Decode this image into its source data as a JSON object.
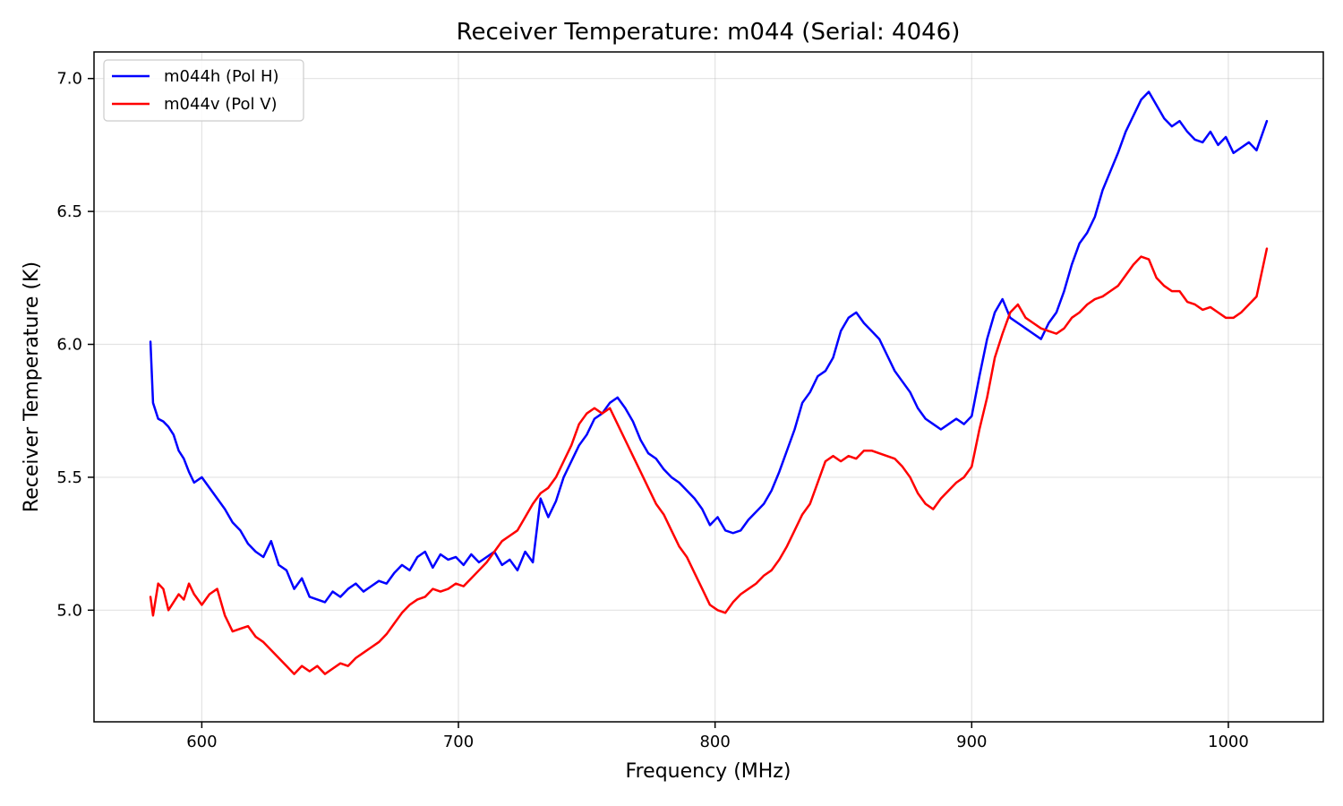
{
  "chart_data": {
    "type": "line",
    "title": "Receiver Temperature: m044 (Serial: 4046)",
    "xlabel": "Frequency (MHz)",
    "ylabel": "Receiver Temperature (K)",
    "xlim": [
      558,
      1037
    ],
    "ylim": [
      4.58,
      7.1
    ],
    "xticks": [
      600,
      700,
      800,
      900,
      1000
    ],
    "xtick_labels": [
      "600",
      "700",
      "800",
      "900",
      "1000"
    ],
    "yticks": [
      5.0,
      5.5,
      6.0,
      6.5,
      7.0
    ],
    "ytick_labels": [
      "5.0",
      "5.5",
      "6.0",
      "6.5",
      "7.0"
    ],
    "grid": true,
    "legend_position": "top-left",
    "series": [
      {
        "name": "m044h (Pol H)",
        "color": "#0000ff",
        "x": [
          580,
          581,
          583,
          585,
          587,
          589,
          591,
          593,
          595,
          597,
          600,
          603,
          606,
          609,
          612,
          615,
          618,
          621,
          624,
          627,
          630,
          633,
          636,
          639,
          642,
          645,
          648,
          651,
          654,
          657,
          660,
          663,
          666,
          669,
          672,
          675,
          678,
          681,
          684,
          687,
          690,
          693,
          696,
          699,
          702,
          705,
          708,
          711,
          714,
          717,
          720,
          723,
          726,
          729,
          732,
          735,
          738,
          741,
          744,
          747,
          750,
          753,
          756,
          759,
          762,
          765,
          768,
          771,
          774,
          777,
          780,
          783,
          786,
          789,
          792,
          795,
          798,
          801,
          804,
          807,
          810,
          813,
          816,
          819,
          822,
          825,
          828,
          831,
          834,
          837,
          840,
          843,
          846,
          849,
          852,
          855,
          858,
          861,
          864,
          867,
          870,
          873,
          876,
          879,
          882,
          885,
          888,
          891,
          894,
          897,
          900,
          903,
          906,
          909,
          912,
          915,
          918,
          921,
          924,
          927,
          930,
          933,
          936,
          939,
          942,
          945,
          948,
          951,
          954,
          957,
          960,
          963,
          966,
          969,
          972,
          975,
          978,
          981,
          984,
          987,
          990,
          993,
          996,
          999,
          1002,
          1005,
          1008,
          1011,
          1015
        ],
        "values": [
          6.01,
          5.78,
          5.72,
          5.71,
          5.69,
          5.66,
          5.6,
          5.57,
          5.52,
          5.48,
          5.5,
          5.46,
          5.42,
          5.38,
          5.33,
          5.3,
          5.25,
          5.22,
          5.2,
          5.26,
          5.17,
          5.15,
          5.08,
          5.12,
          5.05,
          5.04,
          5.03,
          5.07,
          5.05,
          5.08,
          5.1,
          5.07,
          5.09,
          5.11,
          5.1,
          5.14,
          5.17,
          5.15,
          5.2,
          5.22,
          5.16,
          5.21,
          5.19,
          5.2,
          5.17,
          5.21,
          5.18,
          5.2,
          5.22,
          5.17,
          5.19,
          5.15,
          5.22,
          5.18,
          5.42,
          5.35,
          5.41,
          5.5,
          5.56,
          5.62,
          5.66,
          5.72,
          5.74,
          5.78,
          5.8,
          5.76,
          5.71,
          5.64,
          5.59,
          5.57,
          5.53,
          5.5,
          5.48,
          5.45,
          5.42,
          5.38,
          5.32,
          5.35,
          5.3,
          5.29,
          5.3,
          5.34,
          5.37,
          5.4,
          5.45,
          5.52,
          5.6,
          5.68,
          5.78,
          5.82,
          5.88,
          5.9,
          5.95,
          6.05,
          6.1,
          6.12,
          6.08,
          6.05,
          6.02,
          5.96,
          5.9,
          5.86,
          5.82,
          5.76,
          5.72,
          5.7,
          5.68,
          5.7,
          5.72,
          5.7,
          5.73,
          5.88,
          6.02,
          6.12,
          6.17,
          6.1,
          6.08,
          6.06,
          6.04,
          6.02,
          6.08,
          6.12,
          6.2,
          6.3,
          6.38,
          6.42,
          6.48,
          6.58,
          6.65,
          6.72,
          6.8,
          6.86,
          6.92,
          6.95,
          6.9,
          6.85,
          6.82,
          6.84,
          6.8,
          6.77,
          6.76,
          6.8,
          6.75,
          6.78,
          6.72,
          6.74,
          6.76,
          6.73,
          6.84
        ]
      },
      {
        "name": "m044v (Pol V)",
        "color": "#ff0000",
        "x": [
          580,
          581,
          583,
          585,
          587,
          589,
          591,
          593,
          595,
          597,
          600,
          603,
          606,
          609,
          612,
          615,
          618,
          621,
          624,
          627,
          630,
          633,
          636,
          639,
          642,
          645,
          648,
          651,
          654,
          657,
          660,
          663,
          666,
          669,
          672,
          675,
          678,
          681,
          684,
          687,
          690,
          693,
          696,
          699,
          702,
          705,
          708,
          711,
          714,
          717,
          720,
          723,
          726,
          729,
          732,
          735,
          738,
          741,
          744,
          747,
          750,
          753,
          756,
          759,
          762,
          765,
          768,
          771,
          774,
          777,
          780,
          783,
          786,
          789,
          792,
          795,
          798,
          801,
          804,
          807,
          810,
          813,
          816,
          819,
          822,
          825,
          828,
          831,
          834,
          837,
          840,
          843,
          846,
          849,
          852,
          855,
          858,
          861,
          864,
          867,
          870,
          873,
          876,
          879,
          882,
          885,
          888,
          891,
          894,
          897,
          900,
          903,
          906,
          909,
          912,
          915,
          918,
          921,
          924,
          927,
          930,
          933,
          936,
          939,
          942,
          945,
          948,
          951,
          954,
          957,
          960,
          963,
          966,
          969,
          972,
          975,
          978,
          981,
          984,
          987,
          990,
          993,
          996,
          999,
          1002,
          1005,
          1008,
          1011,
          1015
        ],
        "values": [
          5.05,
          4.98,
          5.1,
          5.08,
          5.0,
          5.03,
          5.06,
          5.04,
          5.1,
          5.06,
          5.02,
          5.06,
          5.08,
          4.98,
          4.92,
          4.93,
          4.94,
          4.9,
          4.88,
          4.85,
          4.82,
          4.79,
          4.76,
          4.79,
          4.77,
          4.79,
          4.76,
          4.78,
          4.8,
          4.79,
          4.82,
          4.84,
          4.86,
          4.88,
          4.91,
          4.95,
          4.99,
          5.02,
          5.04,
          5.05,
          5.08,
          5.07,
          5.08,
          5.1,
          5.09,
          5.12,
          5.15,
          5.18,
          5.22,
          5.26,
          5.28,
          5.3,
          5.35,
          5.4,
          5.44,
          5.46,
          5.5,
          5.56,
          5.62,
          5.7,
          5.74,
          5.76,
          5.74,
          5.76,
          5.7,
          5.64,
          5.58,
          5.52,
          5.46,
          5.4,
          5.36,
          5.3,
          5.24,
          5.2,
          5.14,
          5.08,
          5.02,
          5.0,
          4.99,
          5.03,
          5.06,
          5.08,
          5.1,
          5.13,
          5.15,
          5.19,
          5.24,
          5.3,
          5.36,
          5.4,
          5.48,
          5.56,
          5.58,
          5.56,
          5.58,
          5.57,
          5.6,
          5.6,
          5.59,
          5.58,
          5.57,
          5.54,
          5.5,
          5.44,
          5.4,
          5.38,
          5.42,
          5.45,
          5.48,
          5.5,
          5.54,
          5.68,
          5.8,
          5.95,
          6.04,
          6.12,
          6.15,
          6.1,
          6.08,
          6.06,
          6.05,
          6.04,
          6.06,
          6.1,
          6.12,
          6.15,
          6.17,
          6.18,
          6.2,
          6.22,
          6.26,
          6.3,
          6.33,
          6.32,
          6.25,
          6.22,
          6.2,
          6.2,
          6.16,
          6.15,
          6.13,
          6.14,
          6.12,
          6.1,
          6.1,
          6.12,
          6.15,
          6.18,
          6.36
        ]
      }
    ]
  }
}
